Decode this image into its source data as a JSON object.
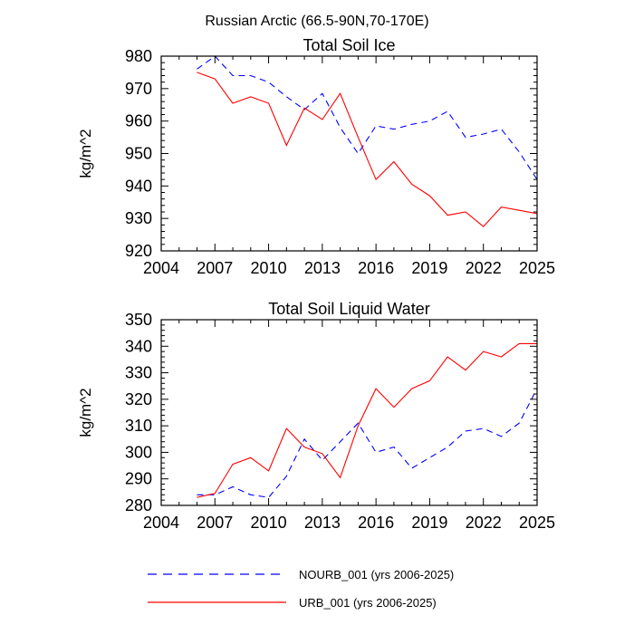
{
  "figure_title": "Russian Arctic (66.5-90N,70-170E)",
  "legend": [
    {
      "label": "NOURB_001 (yrs 2006-2025)",
      "color": "#0000ff",
      "style": "dashed"
    },
    {
      "label": "URB_001 (yrs 2006-2025)",
      "color": "#ff0000",
      "style": "solid"
    }
  ],
  "chart_data": [
    {
      "type": "line",
      "title": "Total Soil Ice",
      "xlabel": "",
      "ylabel": "kg/m^2",
      "xlim": [
        2004,
        2025
      ],
      "ylim": [
        920,
        980
      ],
      "xticks": [
        2004,
        2007,
        2010,
        2013,
        2016,
        2019,
        2022,
        2025
      ],
      "yticks": [
        920,
        930,
        940,
        950,
        960,
        970,
        980
      ],
      "x": [
        2006,
        2007,
        2008,
        2009,
        2010,
        2011,
        2012,
        2013,
        2014,
        2015,
        2016,
        2017,
        2018,
        2019,
        2020,
        2021,
        2022,
        2023,
        2024,
        2025
      ],
      "series": [
        {
          "name": "NOURB_001",
          "color": "#0000ff",
          "style": "dashed",
          "values": [
            976,
            980,
            974,
            974,
            972,
            967.5,
            963.5,
            968.5,
            958,
            950,
            958.5,
            957.5,
            959,
            960,
            963,
            955,
            956,
            957.5,
            950.5,
            942
          ]
        },
        {
          "name": "URB_001",
          "color": "#ff0000",
          "style": "solid",
          "values": [
            975,
            973,
            965.5,
            967.5,
            965.5,
            952.5,
            964,
            960.5,
            968.5,
            955,
            942,
            947.5,
            940.5,
            937,
            931,
            932,
            927.5,
            933.5,
            932.5,
            931.5
          ]
        }
      ]
    },
    {
      "type": "line",
      "title": "Total Soil Liquid Water",
      "xlabel": "",
      "ylabel": "kg/m^2",
      "xlim": [
        2004,
        2025
      ],
      "ylim": [
        280,
        350
      ],
      "xticks": [
        2004,
        2007,
        2010,
        2013,
        2016,
        2019,
        2022,
        2025
      ],
      "yticks": [
        280,
        290,
        300,
        310,
        320,
        330,
        340,
        350
      ],
      "x": [
        2006,
        2007,
        2008,
        2009,
        2010,
        2011,
        2012,
        2013,
        2014,
        2015,
        2016,
        2017,
        2018,
        2019,
        2020,
        2021,
        2022,
        2023,
        2024,
        2025
      ],
      "series": [
        {
          "name": "NOURB_001",
          "color": "#0000ff",
          "style": "dashed",
          "values": [
            284,
            284,
            287,
            284,
            283,
            291,
            305,
            297,
            304,
            311,
            300,
            302,
            294,
            298,
            302,
            308,
            309,
            306,
            311,
            324
          ]
        },
        {
          "name": "URB_001",
          "color": "#ff0000",
          "style": "solid",
          "values": [
            283,
            284.5,
            295.5,
            298,
            293,
            309,
            302,
            299.5,
            290.5,
            310,
            324,
            317,
            324,
            327,
            336,
            331,
            338,
            336,
            341,
            341
          ]
        }
      ]
    }
  ]
}
